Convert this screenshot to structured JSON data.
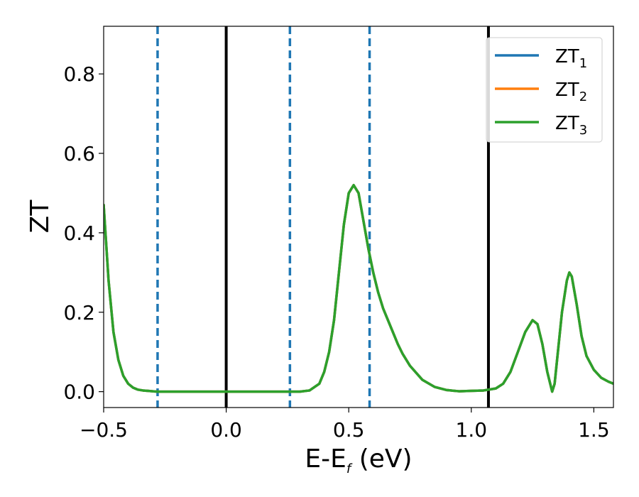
{
  "chart_data": {
    "type": "line",
    "title": "",
    "xlabel": {
      "main": "E-E",
      "sub": "f",
      "unit": " (eV)"
    },
    "ylabel": "ZT",
    "xlim": [
      -0.5,
      1.58
    ],
    "ylim": [
      -0.04,
      0.92
    ],
    "xticks": [
      -0.5,
      0.0,
      0.5,
      1.0,
      1.5
    ],
    "xtick_labels": [
      "−0.5",
      "0.0",
      "0.5",
      "1.0",
      "1.5"
    ],
    "yticks": [
      0.0,
      0.2,
      0.4,
      0.6,
      0.8
    ],
    "ytick_labels": [
      "0.0",
      "0.2",
      "0.4",
      "0.6",
      "0.8"
    ],
    "grid": false,
    "legend_position": "top-right",
    "vlines": [
      {
        "x": -0.28,
        "style": "dashed",
        "color": "#1f77b4"
      },
      {
        "x": 0.0,
        "style": "solid",
        "color": "#000000"
      },
      {
        "x": 0.26,
        "style": "dashed",
        "color": "#1f77b4"
      },
      {
        "x": 0.585,
        "style": "dashed",
        "color": "#1f77b4"
      },
      {
        "x": 1.07,
        "style": "solid",
        "color": "#000000"
      }
    ],
    "x": [
      -0.5,
      -0.48,
      -0.46,
      -0.44,
      -0.42,
      -0.4,
      -0.38,
      -0.36,
      -0.34,
      -0.32,
      -0.3,
      -0.28,
      -0.25,
      -0.2,
      -0.1,
      0.0,
      0.1,
      0.2,
      0.26,
      0.3,
      0.34,
      0.38,
      0.4,
      0.42,
      0.44,
      0.46,
      0.48,
      0.5,
      0.52,
      0.54,
      0.56,
      0.58,
      0.6,
      0.62,
      0.64,
      0.66,
      0.68,
      0.7,
      0.72,
      0.75,
      0.8,
      0.85,
      0.9,
      0.95,
      1.0,
      1.05,
      1.1,
      1.13,
      1.16,
      1.19,
      1.22,
      1.25,
      1.27,
      1.29,
      1.31,
      1.33,
      1.34,
      1.35,
      1.37,
      1.39,
      1.4,
      1.41,
      1.43,
      1.45,
      1.47,
      1.5,
      1.53,
      1.56,
      1.58
    ],
    "series": [
      {
        "name": "ZT₁",
        "label_main": "ZT",
        "label_sub": "1",
        "color": "#1f77b4",
        "values": [
          0.47,
          0.28,
          0.15,
          0.08,
          0.04,
          0.02,
          0.01,
          0.005,
          0.003,
          0.002,
          0.001,
          0.0,
          0.0,
          0.0,
          0.0,
          0.0,
          0.0,
          0.0,
          0.0,
          0.0,
          0.003,
          0.02,
          0.05,
          0.1,
          0.18,
          0.3,
          0.42,
          0.5,
          0.52,
          0.5,
          0.43,
          0.36,
          0.3,
          0.25,
          0.21,
          0.18,
          0.15,
          0.12,
          0.095,
          0.065,
          0.03,
          0.012,
          0.004,
          0.001,
          0.002,
          0.003,
          0.008,
          0.02,
          0.05,
          0.1,
          0.15,
          0.18,
          0.17,
          0.12,
          0.05,
          0.0,
          0.02,
          0.08,
          0.2,
          0.28,
          0.3,
          0.29,
          0.22,
          0.14,
          0.09,
          0.055,
          0.035,
          0.025,
          0.02
        ]
      },
      {
        "name": "ZT₂",
        "label_main": "ZT",
        "label_sub": "2",
        "color": "#ff7f0e",
        "values": [
          0.47,
          0.28,
          0.15,
          0.08,
          0.04,
          0.02,
          0.01,
          0.005,
          0.003,
          0.002,
          0.001,
          0.0,
          0.0,
          0.0,
          0.0,
          0.0,
          0.0,
          0.0,
          0.0,
          0.0,
          0.003,
          0.02,
          0.05,
          0.1,
          0.18,
          0.3,
          0.42,
          0.5,
          0.52,
          0.5,
          0.43,
          0.36,
          0.3,
          0.25,
          0.21,
          0.18,
          0.15,
          0.12,
          0.095,
          0.065,
          0.03,
          0.012,
          0.004,
          0.001,
          0.002,
          0.003,
          0.008,
          0.02,
          0.05,
          0.1,
          0.15,
          0.18,
          0.17,
          0.12,
          0.05,
          0.0,
          0.02,
          0.08,
          0.2,
          0.28,
          0.3,
          0.29,
          0.22,
          0.14,
          0.09,
          0.055,
          0.035,
          0.025,
          0.02
        ]
      },
      {
        "name": "ZT₃",
        "label_main": "ZT",
        "label_sub": "3",
        "color": "#2ca02c",
        "values": [
          0.47,
          0.28,
          0.15,
          0.08,
          0.04,
          0.02,
          0.01,
          0.005,
          0.003,
          0.002,
          0.001,
          0.0,
          0.0,
          0.0,
          0.0,
          0.0,
          0.0,
          0.0,
          0.0,
          0.0,
          0.003,
          0.02,
          0.05,
          0.1,
          0.18,
          0.3,
          0.42,
          0.5,
          0.52,
          0.5,
          0.43,
          0.36,
          0.3,
          0.25,
          0.21,
          0.18,
          0.15,
          0.12,
          0.095,
          0.065,
          0.03,
          0.012,
          0.004,
          0.001,
          0.002,
          0.003,
          0.008,
          0.02,
          0.05,
          0.1,
          0.15,
          0.18,
          0.17,
          0.12,
          0.05,
          0.0,
          0.02,
          0.08,
          0.2,
          0.28,
          0.3,
          0.29,
          0.22,
          0.14,
          0.09,
          0.055,
          0.035,
          0.025,
          0.02
        ]
      }
    ]
  }
}
